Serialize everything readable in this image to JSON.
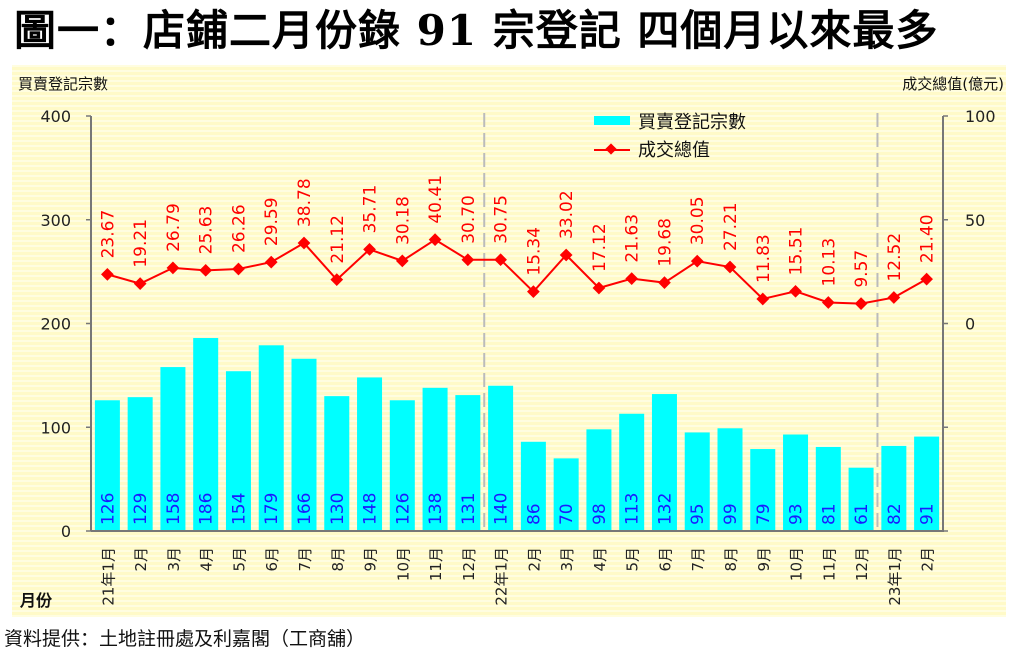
{
  "title": "圖一：店鋪二月份錄 91 宗登記  四個月以來最多",
  "source": "資料提供：土地註冊處及利嘉閣（工商舖）",
  "colors": {
    "bar": "#00ffff",
    "bar_label": "#1a1aff",
    "line": "#ff0000",
    "axis": "#777777",
    "separator": "#bbbbbb"
  },
  "chart_data": {
    "type": "bar+line",
    "title": "圖一：店鋪二月份錄 91 宗登記  四個月以來最多",
    "xlabel": "月份",
    "ylabel_left": "買賣登記宗數",
    "ylabel_right": "成交總值(億元)",
    "ylim_left": [
      0,
      400
    ],
    "yticks_left": [
      0,
      100,
      200,
      300,
      400
    ],
    "ylim_right": [
      -100,
      100
    ],
    "yticks_right": [
      {
        "value": 100,
        "label": "100"
      },
      {
        "value": 50,
        "label": "50"
      },
      {
        "value": 0,
        "label": "0"
      },
      {
        "value": -50,
        "label": ""
      },
      {
        "value": -100,
        "label": ""
      }
    ],
    "legend_position": "top-center",
    "year_separators_before": [
      "22年1月",
      "23年1月"
    ],
    "categories": [
      "21年1月",
      "2月",
      "3月",
      "4月",
      "5月",
      "6月",
      "7月",
      "8月",
      "9月",
      "10月",
      "11月",
      "12月",
      "22年1月",
      "2月",
      "3月",
      "4月",
      "5月",
      "6月",
      "7月",
      "8月",
      "9月",
      "10月",
      "11月",
      "12月",
      "23年1月",
      "2月"
    ],
    "series": [
      {
        "name": "買賣登記宗數",
        "type": "bar",
        "axis": "left",
        "values": [
          126,
          129,
          158,
          186,
          154,
          179,
          166,
          130,
          148,
          126,
          138,
          131,
          140,
          86,
          70,
          98,
          113,
          132,
          95,
          99,
          79,
          93,
          81,
          61,
          82,
          91
        ]
      },
      {
        "name": "成交總值",
        "type": "line",
        "axis": "right",
        "values": [
          23.67,
          19.21,
          26.79,
          25.63,
          26.26,
          29.59,
          38.78,
          21.12,
          35.71,
          30.18,
          40.41,
          30.7,
          30.75,
          15.34,
          33.02,
          17.12,
          21.63,
          19.68,
          30.05,
          27.21,
          11.83,
          15.51,
          10.13,
          9.57,
          12.52,
          21.4
        ]
      }
    ]
  }
}
